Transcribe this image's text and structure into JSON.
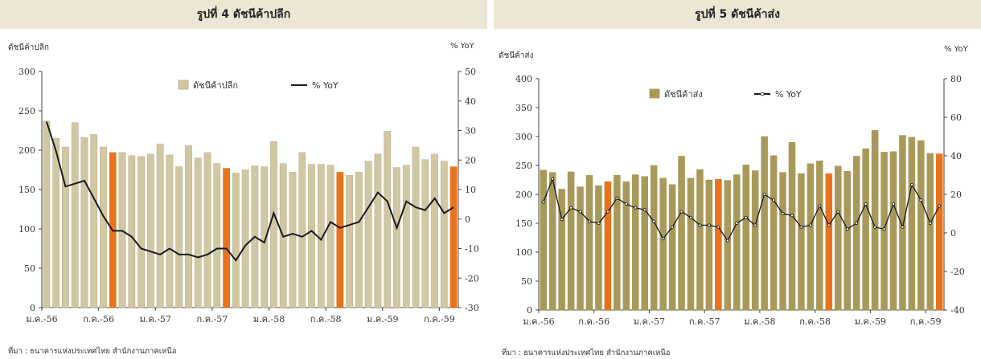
{
  "source_text": "ที่มา : ธนาคารแห่งประเทศไทย สำนักงานภาคเหนือ",
  "colors": {
    "bar_left": "#d1c7a3",
    "bar_left_stroke": "#b8ac86",
    "bar_right": "#a8995a",
    "highlight": "#e8731c",
    "line": "#1a1a1a",
    "title_bg": "#ece6d4"
  },
  "chart_data": [
    {
      "type": "bar",
      "title": "รูปที่ 4 ดัชนีค้าปลีก",
      "ylabel": "ดัชนีค้าปลีก",
      "y2label": "% YoY",
      "ylim": [
        0,
        300
      ],
      "yticks": [
        "0",
        "50",
        "100",
        "150",
        "200",
        "250",
        "300"
      ],
      "y2lim": [
        -30,
        50
      ],
      "y2ticks": [
        "-30",
        "-20",
        "-10",
        "0",
        "10",
        "20",
        "30",
        "40",
        "50"
      ],
      "x_tick_labels": [
        {
          "index": 0,
          "label": "ม.ค.-56"
        },
        {
          "index": 6,
          "label": "ก.ค.-56"
        },
        {
          "index": 12,
          "label": "ม.ค.-57"
        },
        {
          "index": 18,
          "label": "ก.ค.-57"
        },
        {
          "index": 24,
          "label": "ม.ค.-58"
        },
        {
          "index": 30,
          "label": "ก.ค.-58"
        },
        {
          "index": 36,
          "label": "ม.ค.-59"
        },
        {
          "index": 42,
          "label": "ก.ค.-59"
        }
      ],
      "legend": {
        "position": "top-center",
        "bar_label": "ดัชนีค้าปลีก",
        "line_label": "% YoY"
      },
      "highlight_indices": [
        7,
        19,
        31,
        43
      ],
      "series": [
        {
          "name": "ดัชนีค้าปลีก",
          "kind": "bar",
          "axis": "left",
          "values": [
            237,
            215,
            204,
            235,
            216,
            220,
            204,
            197,
            197,
            193,
            192,
            195,
            208,
            194,
            179,
            206,
            190,
            197,
            183,
            177,
            171,
            175,
            180,
            179,
            211,
            183,
            172,
            197,
            182,
            182,
            181,
            172,
            168,
            172,
            186,
            195,
            224,
            178,
            181,
            204,
            188,
            195,
            186,
            179
          ]
        },
        {
          "name": "% YoY",
          "kind": "line",
          "axis": "right",
          "values": [
            33,
            23,
            11,
            12,
            13,
            7,
            1,
            -4,
            -4,
            -6,
            -10,
            -11,
            -12,
            -10,
            -12,
            -12,
            -13,
            -12,
            -10,
            -10,
            -14,
            -9,
            -6,
            -8,
            2,
            -6,
            -5,
            -6,
            -4,
            -7,
            -1,
            -3,
            -2,
            -1,
            4,
            9,
            6,
            -3,
            6,
            4,
            3,
            7,
            2,
            4
          ]
        }
      ]
    },
    {
      "type": "bar",
      "title": "รูปที่ 5 ดัชนีค้าส่ง",
      "ylabel": "ดัชนีค้าส่ง",
      "y2label": "% YoY",
      "ylim": [
        0,
        400
      ],
      "yticks": [
        "0",
        "50",
        "100",
        "150",
        "200",
        "250",
        "300",
        "350",
        "400"
      ],
      "y2lim": [
        -40,
        80
      ],
      "y2ticks": [
        "-40",
        "-20",
        "0",
        "20",
        "40",
        "60",
        "80"
      ],
      "x_tick_labels": [
        {
          "index": 0,
          "label": "ม.ค.-56"
        },
        {
          "index": 6,
          "label": "ก.ค.-56"
        },
        {
          "index": 12,
          "label": "ม.ค.-57"
        },
        {
          "index": 18,
          "label": "ก.ค.-57"
        },
        {
          "index": 24,
          "label": "ม.ค.-58"
        },
        {
          "index": 30,
          "label": "ก.ค.-58"
        },
        {
          "index": 36,
          "label": "ม.ค.-59"
        },
        {
          "index": 42,
          "label": "ก.ค.-59"
        }
      ],
      "legend": {
        "position": "top-center",
        "bar_label": "ดัชนีค้าส่ง",
        "line_label": "% YoY"
      },
      "highlight_indices": [
        7,
        19,
        31,
        43
      ],
      "series": [
        {
          "name": "ดัชนีค้าส่ง",
          "kind": "bar",
          "axis": "left",
          "values": [
            242,
            238,
            209,
            239,
            213,
            233,
            215,
            222,
            233,
            222,
            234,
            231,
            250,
            228,
            217,
            266,
            228,
            243,
            225,
            226,
            224,
            234,
            251,
            241,
            300,
            267,
            238,
            290,
            236,
            253,
            258,
            236,
            249,
            240,
            266,
            279,
            311,
            273,
            274,
            302,
            299,
            293,
            271,
            270
          ]
        },
        {
          "name": "% YoY",
          "kind": "line",
          "axis": "right",
          "values": [
            16,
            28,
            7,
            13,
            11,
            6,
            5,
            11,
            18,
            15,
            13,
            12,
            6,
            -3,
            3,
            11,
            8,
            4,
            4,
            3,
            -4,
            5,
            8,
            4,
            20,
            17,
            10,
            9,
            3,
            4,
            14,
            4,
            11,
            2,
            5,
            15,
            3,
            2,
            15,
            3,
            25,
            17,
            5,
            14
          ]
        }
      ]
    }
  ]
}
